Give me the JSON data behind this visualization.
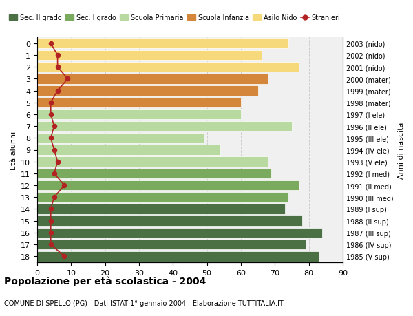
{
  "ages": [
    18,
    17,
    16,
    15,
    14,
    13,
    12,
    11,
    10,
    9,
    8,
    7,
    6,
    5,
    4,
    3,
    2,
    1,
    0
  ],
  "right_labels": [
    "1985 (V sup)",
    "1986 (IV sup)",
    "1987 (III sup)",
    "1988 (II sup)",
    "1989 (I sup)",
    "1990 (III med)",
    "1991 (II med)",
    "1992 (I med)",
    "1993 (V ele)",
    "1994 (IV ele)",
    "1995 (III ele)",
    "1996 (II ele)",
    "1997 (I ele)",
    "1998 (mater)",
    "1999 (mater)",
    "2000 (mater)",
    "2001 (nido)",
    "2002 (nido)",
    "2003 (nido)"
  ],
  "bar_values": [
    83,
    79,
    84,
    78,
    73,
    74,
    77,
    69,
    68,
    54,
    49,
    75,
    60,
    60,
    65,
    68,
    77,
    66,
    74
  ],
  "bar_colors": [
    "#4a7043",
    "#4a7043",
    "#4a7043",
    "#4a7043",
    "#4a7043",
    "#7aaa5e",
    "#7aaa5e",
    "#7aaa5e",
    "#b8d9a0",
    "#b8d9a0",
    "#b8d9a0",
    "#b8d9a0",
    "#b8d9a0",
    "#d4873a",
    "#d4873a",
    "#d4873a",
    "#f5d97a",
    "#f5d97a",
    "#f5d97a"
  ],
  "stranieri_values": [
    8,
    4,
    4,
    4,
    4,
    5,
    8,
    5,
    6,
    5,
    4,
    5,
    4,
    4,
    6,
    9,
    6,
    6,
    4
  ],
  "legend_items": [
    {
      "label": "Sec. II grado",
      "color": "#4a7043"
    },
    {
      "label": "Sec. I grado",
      "color": "#7aaa5e"
    },
    {
      "label": "Scuola Primaria",
      "color": "#b8d9a0"
    },
    {
      "label": "Scuola Infanzia",
      "color": "#d4873a"
    },
    {
      "label": "Asilo Nido",
      "color": "#f5d97a"
    },
    {
      "label": "Stranieri",
      "color": "#b22222"
    }
  ],
  "right_ylabel": "Anni di nascita",
  "left_ylabel": "Età alunni",
  "title_bold": "Popolazione per età scolastica - 2004",
  "subtitle": "COMUNE DI SPELLO (PG) - Dati ISTAT 1° gennaio 2004 - Elaborazione TUTTITALIA.IT",
  "xlim": [
    0,
    90
  ],
  "xticks": [
    0,
    10,
    20,
    30,
    40,
    50,
    60,
    70,
    80,
    90
  ],
  "background_color": "#ffffff",
  "bar_bg_color": "#f0f0f0",
  "grid_color": "#cccccc"
}
